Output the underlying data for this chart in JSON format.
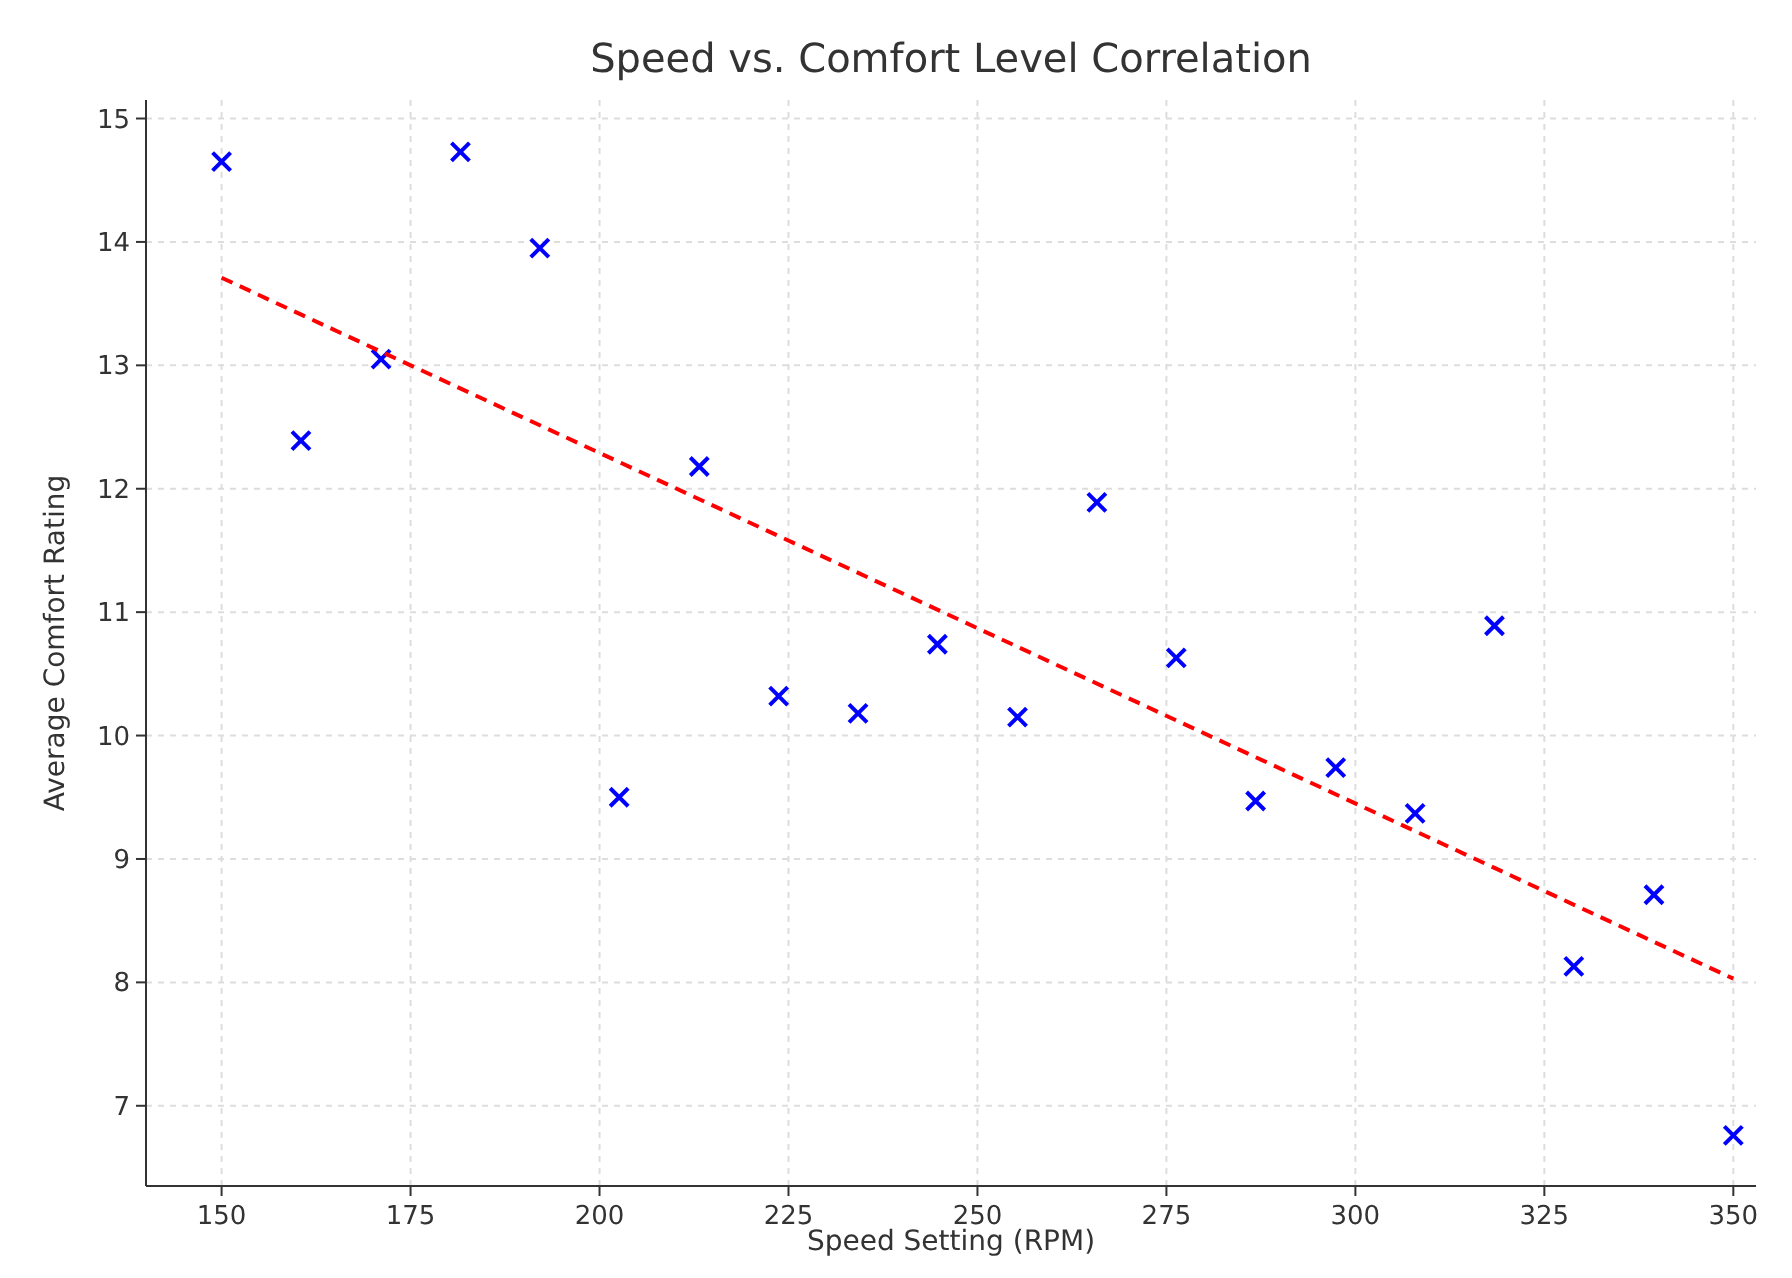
{
  "chart_data": {
    "type": "scatter",
    "title": "Speed vs. Comfort Level Correlation",
    "xlabel": "Speed Setting (RPM)",
    "ylabel": "Average Comfort Rating",
    "xlim": [
      140,
      353
    ],
    "ylim": [
      6.35,
      15.15
    ],
    "xticks": [
      150,
      175,
      200,
      225,
      250,
      275,
      300,
      325,
      350
    ],
    "yticks": [
      7,
      8,
      9,
      10,
      11,
      12,
      13,
      14,
      15
    ],
    "grid": true,
    "series": [
      {
        "color": "#0000ff",
        "marker": "cross",
        "x": [
          150,
          160.5,
          171.1,
          181.6,
          192.1,
          202.6,
          213.2,
          223.7,
          234.2,
          244.7,
          255.3,
          265.8,
          276.3,
          286.8,
          297.4,
          307.9,
          318.4,
          328.9,
          339.5,
          350
        ],
        "values": [
          14.65,
          12.39,
          13.05,
          14.73,
          13.95,
          9.5,
          12.18,
          10.32,
          10.18,
          10.74,
          10.15,
          11.89,
          10.63,
          9.47,
          9.74,
          9.37,
          10.89,
          8.13,
          8.71,
          6.76
        ]
      },
      {
        "type": "line",
        "color": "#ff0000",
        "line_style": "dashed",
        "marker": "none",
        "x": [
          150,
          350
        ],
        "values": [
          13.71,
          8.03
        ]
      }
    ]
  }
}
